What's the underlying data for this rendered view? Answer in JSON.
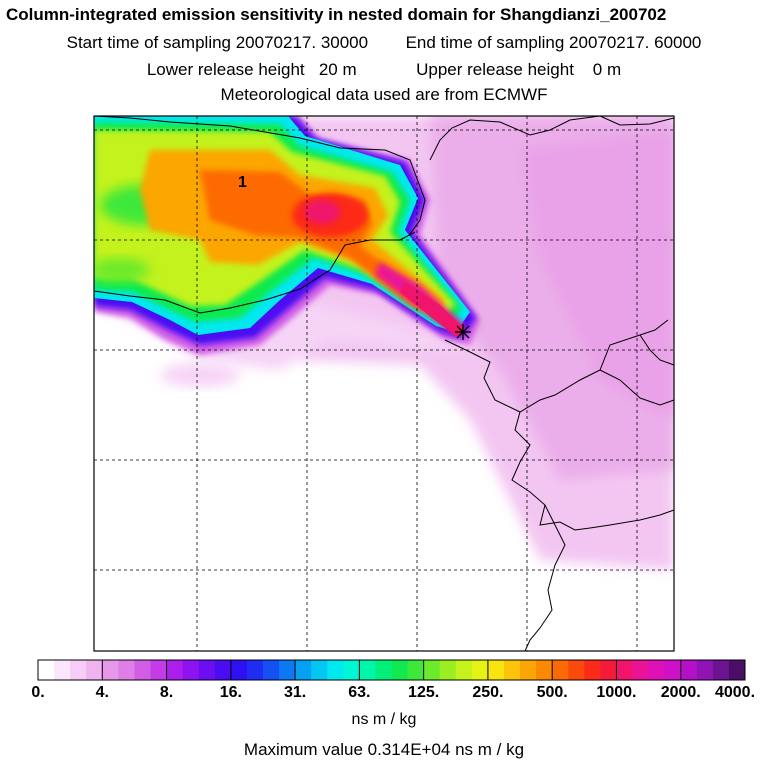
{
  "header": {
    "title": "Column-integrated emission sensitivity in nested domain for Shangdianzi_200702",
    "line1_start": "Start time of sampling 20070217. 30000",
    "line1_end": "End time of sampling 20070217. 60000",
    "line2_lower": "Lower release height   20 m",
    "line2_upper": "Upper release height    0 m",
    "line3": "Meteorological data used are from ECMWF"
  },
  "map": {
    "marker_label": "1",
    "release_marker_icon": "star-cross-icon"
  },
  "colorbar": {
    "labels": [
      "0.",
      "4.",
      "8.",
      "16.",
      "31.",
      "63.",
      "125.",
      "250.",
      "500.",
      "1000.",
      "2000.",
      "4000."
    ],
    "colors": [
      "#ffffff",
      "#fbe6fb",
      "#f6cdf6",
      "#efb3f0",
      "#e898ea",
      "#df7ee6",
      "#d35ee6",
      "#c43ce8",
      "#ad1eec",
      "#8f12f0",
      "#6d0ef2",
      "#4b0cf2",
      "#2f10f2",
      "#1f2cf2",
      "#1450f2",
      "#0c78f2",
      "#06a0f2",
      "#04c6f2",
      "#00e8f0",
      "#00f6d4",
      "#00f6a8",
      "#00f07a",
      "#10ea50",
      "#3ee83a",
      "#6cea2c",
      "#9aee22",
      "#c4f21a",
      "#e6f214",
      "#f8e40e",
      "#fcc40a",
      "#fca606",
      "#fc8804",
      "#fc6a06",
      "#fc4a0c",
      "#fc2a18",
      "#f61a3a",
      "#f0146a",
      "#ea1296",
      "#de10b8",
      "#ce10c8",
      "#b410c8",
      "#9014b4",
      "#6c1490",
      "#4a0e66"
    ],
    "units": "ns m / kg",
    "max_value": "Maximum value  0.314E+04 ns m / kg"
  }
}
